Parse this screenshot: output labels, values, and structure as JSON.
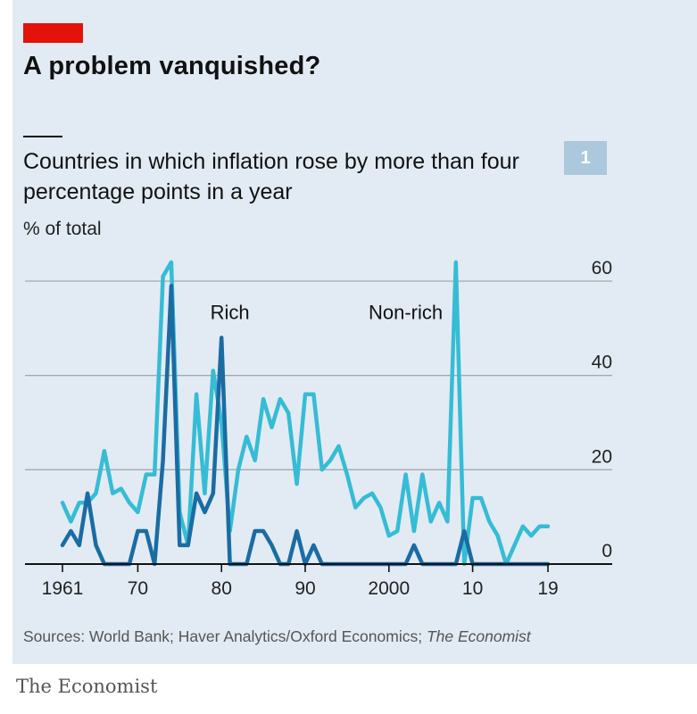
{
  "header": {
    "title": "A problem vanquished?",
    "subtitle": "Countries in which inflation rose by more than four percentage points in a year",
    "unit": "% of total",
    "badge": "1"
  },
  "footer": {
    "sources_prefix": "Sources: World Bank; Haver Analytics/Oxford Economics;",
    "sources_italic": "The Economist",
    "brand": "The Economist"
  },
  "colors": {
    "background": "#e2ebf3",
    "rich": "#1a6ca3",
    "non_rich": "#36bcd5",
    "accent": "#e3120b",
    "grid": "#a3a9ae",
    "axis": "#111111"
  },
  "chart_data": {
    "type": "line",
    "title": "Countries in which inflation rose by more than four percentage points in a year",
    "ylabel": "% of total",
    "xlabel": "",
    "xlim": [
      1961,
      2019
    ],
    "ylim": [
      0,
      60
    ],
    "yticks": [
      0,
      20,
      40,
      60
    ],
    "xticks": [
      {
        "value": 1961,
        "label": "1961"
      },
      {
        "value": 1970,
        "label": "70"
      },
      {
        "value": 1980,
        "label": "80"
      },
      {
        "value": 1990,
        "label": "90"
      },
      {
        "value": 2000,
        "label": "2000"
      },
      {
        "value": 2010,
        "label": "10"
      },
      {
        "value": 2019,
        "label": "19"
      }
    ],
    "grid": true,
    "y_axis_side": "right",
    "x": [
      1961,
      1962,
      1963,
      1964,
      1965,
      1966,
      1967,
      1968,
      1969,
      1970,
      1971,
      1972,
      1973,
      1974,
      1975,
      1976,
      1977,
      1978,
      1979,
      1980,
      1981,
      1982,
      1983,
      1984,
      1985,
      1986,
      1987,
      1988,
      1989,
      1990,
      1991,
      1992,
      1993,
      1994,
      1995,
      1996,
      1997,
      1998,
      1999,
      2000,
      2001,
      2002,
      2003,
      2004,
      2005,
      2006,
      2007,
      2008,
      2009,
      2010,
      2011,
      2012,
      2013,
      2014,
      2015,
      2016,
      2017,
      2018,
      2019
    ],
    "series": [
      {
        "name": "Rich",
        "color": "#1a6ca3",
        "values": [
          4,
          7,
          4,
          15,
          4,
          0,
          0,
          0,
          0,
          7,
          7,
          0,
          22,
          59,
          4,
          4,
          15,
          11,
          15,
          48,
          0,
          0,
          0,
          7,
          7,
          4,
          0,
          0,
          7,
          0,
          4,
          0,
          0,
          0,
          0,
          0,
          0,
          0,
          0,
          0,
          0,
          0,
          4,
          0,
          0,
          0,
          0,
          0,
          7,
          0,
          0,
          0,
          0,
          0,
          0,
          0,
          0,
          0,
          0
        ]
      },
      {
        "name": "Non-rich",
        "color": "#36bcd5",
        "values": [
          13,
          9,
          13,
          13,
          15,
          24,
          15,
          16,
          13,
          11,
          19,
          19,
          61,
          64,
          11,
          4,
          36,
          15,
          41,
          30,
          7,
          20,
          27,
          22,
          35,
          29,
          35,
          32,
          17,
          36,
          36,
          20,
          22,
          25,
          19,
          12,
          14,
          15,
          12,
          6,
          7,
          19,
          7,
          19,
          9,
          13,
          9,
          64,
          0,
          14,
          14,
          9,
          6,
          0,
          4,
          8,
          6,
          8,
          8
        ]
      }
    ],
    "annotations": [
      {
        "text": "Rich",
        "series": "Rich",
        "x": 1981,
        "y": 52
      },
      {
        "text": "Non-rich",
        "series": "Non-rich",
        "x": 2002,
        "y": 52
      }
    ]
  }
}
